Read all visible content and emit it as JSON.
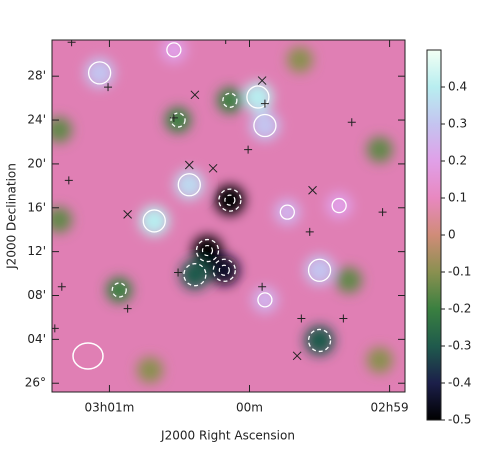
{
  "chart_data": {
    "type": "heatmap",
    "x_label": "J2000 Right Ascension",
    "y_label": "J2000 Declination",
    "xlim": [
      181.41,
      178.89
    ],
    "ylim": [
      -0.8,
      31.3
    ],
    "xticks": [
      {
        "value": 181,
        "label": "03h01m"
      },
      {
        "value": 180,
        "label": "00m"
      },
      {
        "value": 179,
        "label": "02h59"
      }
    ],
    "yticks": [
      {
        "value": 0,
        "label": "26°"
      },
      {
        "value": 4,
        "label": "04'"
      },
      {
        "value": 8,
        "label": "08'"
      },
      {
        "value": 12,
        "label": "12'"
      },
      {
        "value": 16,
        "label": "16'"
      },
      {
        "value": 20,
        "label": "20'"
      },
      {
        "value": 24,
        "label": "24'"
      },
      {
        "value": 28,
        "label": "28'"
      }
    ],
    "clim": [
      -0.5,
      0.5
    ],
    "cticks": [
      0.4,
      0.3,
      0.2,
      0.1,
      0,
      -0.1,
      -0.2,
      -0.3,
      -0.4,
      -0.5
    ],
    "colors": [
      "#000000",
      "#1c1f4a",
      "#1f5a4c",
      "#3a8040",
      "#8a9050",
      "#d08c78",
      "#e888c0",
      "#e0a0e8",
      "#c4c4f0",
      "#b8eef0",
      "#f2fff4"
    ],
    "features": {
      "x": [
        179.94,
        179.89,
        181.07,
        180.54,
        180.43,
        180.68,
        180.14,
        180.3,
        180.18,
        180.39,
        179.5,
        179.89,
        179.73,
        179.36,
        179.5,
        180.14,
        180.51,
        181.36,
        180.93,
        179.07,
        179.29,
        180.71,
        179.07,
        179.64,
        181.36
      ],
      "y": [
        26.1,
        23.5,
        28.3,
        30.4,
        18.1,
        14.8,
        16.7,
        12.1,
        10.3,
        9.9,
        10.3,
        7.6,
        15.6,
        16.2,
        3.9,
        25.8,
        24.0,
        14.9,
        8.5,
        21.3,
        9.4,
        1.2,
        2.1,
        29.5,
        23.1
      ],
      "values": [
        0.4,
        0.3,
        0.3,
        0.2,
        0.35,
        0.4,
        -0.5,
        -0.5,
        -0.45,
        -0.3,
        0.3,
        0.25,
        0.25,
        0.2,
        -0.3,
        -0.2,
        -0.2,
        -0.15,
        -0.2,
        -0.15,
        -0.15,
        -0.1,
        -0.1,
        -0.1,
        -0.15
      ]
    },
    "markers": [
      {
        "symbol": "+",
        "x": [
          181.27,
          181.01,
          181.29,
          180.54,
          180.01,
          179.89,
          179.57,
          179.27,
          179.05,
          181.34,
          180.87,
          179.91,
          179.63,
          179.33,
          181.39,
          180.51,
          180.17
        ],
        "y": [
          31.1,
          27.0,
          18.5,
          24.2,
          21.3,
          25.5,
          13.8,
          23.8,
          15.6,
          8.8,
          6.8,
          8.8,
          5.9,
          5.9,
          5.0,
          10.1,
          31.3
        ]
      },
      {
        "symbol": "x",
        "x": [
          180.39,
          179.91,
          180.43,
          180.26,
          180.87,
          179.55,
          179.66
        ],
        "y": [
          26.3,
          27.6,
          19.9,
          19.6,
          15.4,
          17.6,
          2.5
        ]
      }
    ]
  }
}
